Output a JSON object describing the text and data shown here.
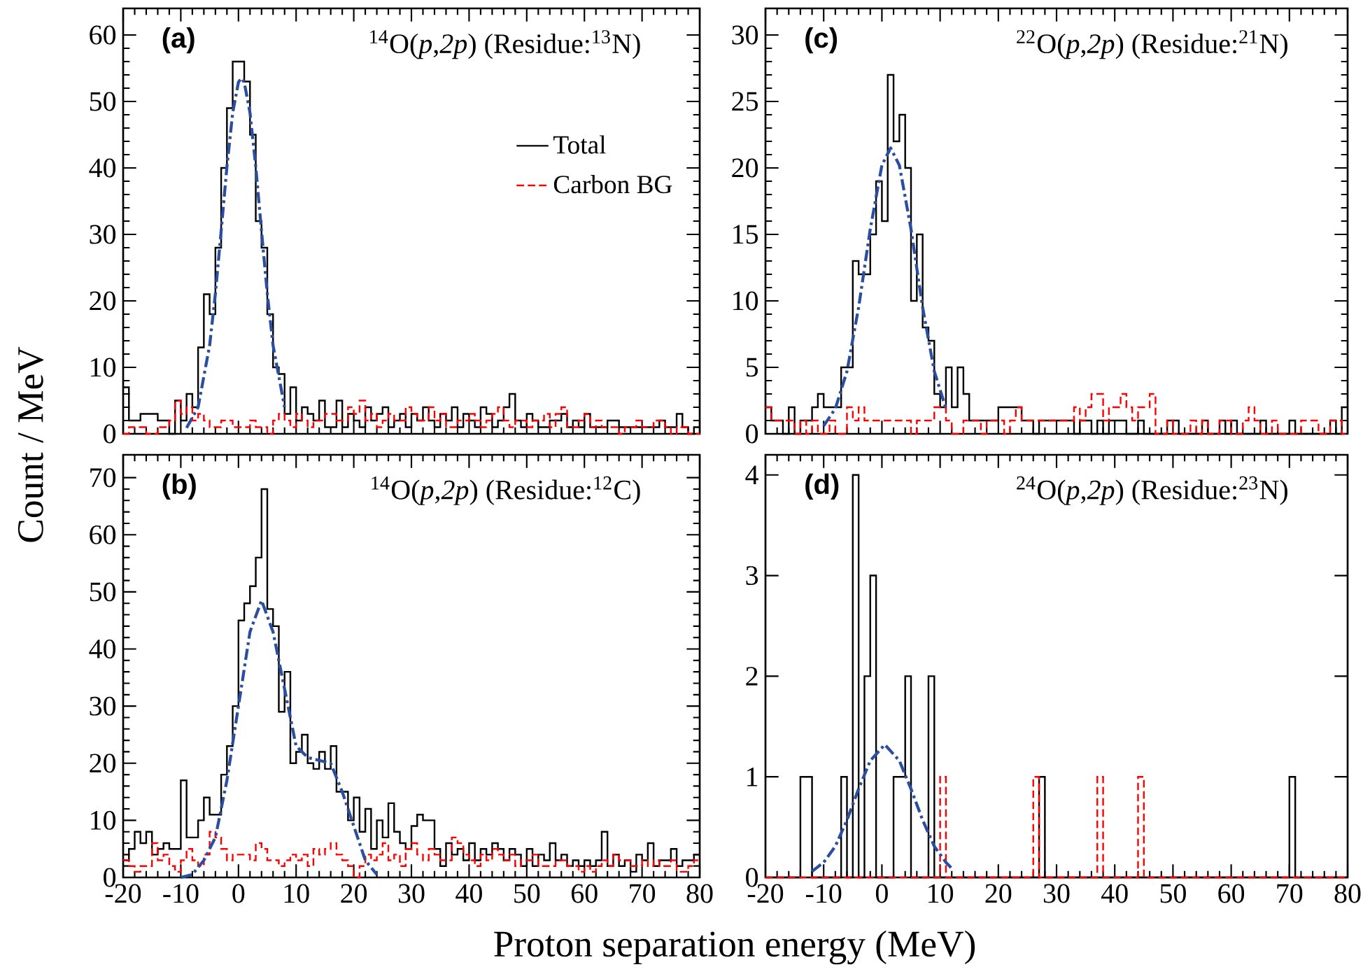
{
  "chart_data": [
    {
      "type": "histogram",
      "title": "(a)",
      "subtitle": "$^{14}$O(*p*,*2p*) (Residue:$^{13}$N)",
      "ylabel": "Count / MeV",
      "legend": "top right",
      "tick_labels": "y",
      "bins": [
        -20,
        -19,
        -18,
        -17,
        -16,
        -15,
        -14,
        -13,
        -12,
        -11,
        -10,
        -9,
        -8,
        -7,
        -6,
        -5,
        -4,
        -3,
        -2,
        -1,
        0,
        1,
        2,
        3,
        4,
        5,
        6,
        7,
        8,
        9,
        10,
        11,
        12,
        13,
        14,
        15,
        16,
        17,
        18,
        19,
        20,
        21,
        22,
        23,
        24,
        25,
        26,
        27,
        28,
        29,
        30,
        31,
        32,
        33,
        34,
        35,
        36,
        37,
        38,
        39,
        40,
        41,
        42,
        43,
        44,
        45,
        46,
        47,
        48,
        49,
        50,
        51,
        52,
        53,
        54,
        55,
        56,
        57,
        58,
        59,
        60,
        61,
        62,
        63,
        64,
        65,
        66,
        67,
        68,
        69,
        70,
        71,
        72,
        73,
        74,
        75,
        76,
        77,
        78,
        79,
        80
      ],
      "xlim": [
        -20,
        80
      ],
      "xticks": [
        -20,
        -10,
        0,
        10,
        20,
        30,
        40,
        50,
        60,
        70,
        80
      ],
      "ylim": [
        0,
        64
      ],
      "yticks": [
        0,
        10,
        20,
        30,
        40,
        50,
        60
      ],
      "series": [
        {
          "name": "Total",
          "color": "#000000",
          "line_style": "solid",
          "values": [
            7,
            2,
            2,
            3,
            3,
            3,
            2,
            2,
            0,
            5,
            2,
            6,
            4,
            13,
            21,
            18,
            28,
            40,
            49,
            56,
            56,
            53,
            45,
            32,
            28,
            18,
            10,
            9,
            3,
            7,
            2,
            4,
            3,
            2,
            5,
            1,
            1,
            5,
            1,
            3,
            2,
            1,
            4,
            2,
            3,
            4,
            1,
            2,
            3,
            1,
            3,
            2,
            4,
            2,
            1,
            3,
            2,
            4,
            1,
            3,
            2,
            1,
            4,
            3,
            1,
            2,
            4,
            6,
            2,
            1,
            3,
            2,
            1,
            1,
            2,
            2,
            3,
            1,
            2,
            1,
            3,
            1,
            1,
            1,
            2,
            2,
            1,
            1,
            1,
            1,
            1,
            1,
            1,
            2,
            1,
            1,
            3,
            1,
            0,
            1
          ]
        },
        {
          "name": "Carbon BG",
          "color": "#ff0000",
          "line_style": "dashed",
          "values": [
            0,
            1,
            1,
            1,
            0,
            0,
            1,
            1,
            2,
            5,
            3,
            4,
            2,
            3,
            2,
            1,
            1,
            2,
            2,
            1,
            1,
            1,
            2,
            1,
            1,
            0,
            2,
            3,
            2,
            1,
            3,
            2,
            1,
            2,
            2,
            3,
            3,
            2,
            2,
            4,
            3,
            5,
            2,
            3,
            1,
            2,
            3,
            2,
            2,
            4,
            3,
            2,
            2,
            4,
            2,
            3,
            1,
            1,
            2,
            2,
            3,
            2,
            1,
            2,
            3,
            4,
            2,
            1,
            2,
            2,
            1,
            2,
            2,
            3,
            1,
            3,
            4,
            1,
            1,
            2,
            3,
            1,
            2,
            1,
            1,
            1,
            0,
            1,
            1,
            2,
            1,
            1,
            2,
            2,
            1,
            0,
            1,
            1,
            0,
            0
          ]
        },
        {
          "type": "line",
          "color": "#2a4ea0",
          "line_style": "dashdot",
          "x": [
            -9,
            -7,
            -5,
            -4,
            -3,
            -2,
            -1,
            0,
            0.5,
            1,
            2,
            3,
            4,
            5,
            6,
            8
          ],
          "values": [
            0.9,
            4.0,
            13.3,
            21.1,
            30.5,
            40.2,
            48.3,
            52.9,
            53.5,
            52.9,
            48.3,
            40.2,
            30.5,
            21.1,
            13.3,
            4.0
          ]
        }
      ]
    },
    {
      "type": "histogram",
      "title": "(c)",
      "subtitle": "$^{22}$O(*p*,*2p*) (Residue:$^{21}$N)",
      "tick_labels": "y",
      "bins": [
        -20,
        -19,
        -18,
        -17,
        -16,
        -15,
        -14,
        -13,
        -12,
        -11,
        -10,
        -9,
        -8,
        -7,
        -6,
        -5,
        -4,
        -3,
        -2,
        -1,
        0,
        1,
        2,
        3,
        4,
        5,
        6,
        7,
        8,
        9,
        10,
        11,
        12,
        13,
        14,
        15,
        16,
        17,
        18,
        19,
        20,
        21,
        22,
        23,
        24,
        25,
        26,
        27,
        28,
        29,
        30,
        31,
        32,
        33,
        34,
        35,
        36,
        37,
        38,
        39,
        40,
        41,
        42,
        43,
        44,
        45,
        46,
        47,
        48,
        49,
        50,
        51,
        52,
        53,
        54,
        55,
        56,
        57,
        58,
        59,
        60,
        61,
        62,
        63,
        64,
        65,
        66,
        67,
        68,
        69,
        70,
        71,
        72,
        73,
        74,
        75,
        76,
        77,
        78,
        79,
        80
      ],
      "xlim": [
        -20,
        80
      ],
      "xticks": [
        -20,
        -10,
        0,
        10,
        20,
        30,
        40,
        50,
        60,
        70,
        80
      ],
      "ylim": [
        0,
        32
      ],
      "yticks": [
        0,
        5,
        10,
        15,
        20,
        25,
        30
      ],
      "series": [
        {
          "color": "#000000",
          "line_style": "solid",
          "values": [
            2,
            1,
            1,
            0,
            2,
            0,
            1,
            1,
            2,
            3,
            2,
            2,
            2,
            5,
            5,
            13,
            12,
            12,
            15,
            19,
            16,
            27,
            22,
            24,
            20,
            10,
            15,
            8,
            7,
            3,
            2,
            5,
            2,
            5,
            3,
            1,
            1,
            1,
            1,
            1,
            2,
            2,
            2,
            2,
            1,
            1,
            0,
            1,
            1,
            1,
            1,
            1,
            1,
            0,
            1,
            1,
            0,
            1,
            0,
            1,
            1,
            1,
            0,
            0,
            1,
            0,
            0,
            0,
            0,
            1,
            1,
            0,
            0,
            0,
            0,
            1,
            0,
            0,
            1,
            0,
            1,
            0,
            0,
            0,
            0,
            1,
            0,
            0,
            0,
            0,
            1,
            0,
            0,
            0,
            0,
            0,
            0,
            1,
            0,
            2
          ]
        },
        {
          "color": "#ff0000",
          "line_style": "dashed",
          "values": [
            2,
            1,
            1,
            1,
            1,
            0,
            1,
            0,
            1,
            0,
            0,
            1,
            0,
            0,
            2,
            1,
            2,
            1,
            1,
            1,
            1,
            1,
            1,
            1,
            1,
            0,
            1,
            1,
            1,
            2,
            2,
            1,
            0,
            0,
            1,
            1,
            1,
            0,
            1,
            1,
            1,
            0,
            1,
            2,
            1,
            1,
            1,
            1,
            1,
            1,
            1,
            1,
            1,
            2,
            1,
            2,
            3,
            3,
            1,
            2,
            2,
            3,
            2,
            1,
            2,
            2,
            3,
            0,
            0,
            1,
            0,
            0,
            0,
            1,
            0,
            1,
            0,
            0,
            1,
            1,
            0,
            0,
            1,
            2,
            1,
            0,
            0,
            1,
            0,
            0,
            0,
            0,
            1,
            1,
            1,
            0,
            0,
            1,
            1,
            0
          ]
        },
        {
          "type": "line",
          "color": "#2a4ea0",
          "line_style": "dashdot",
          "x": [
            -10,
            -8,
            -6,
            -4,
            -2,
            0,
            1.5,
            3,
            5,
            7,
            9,
            11
          ],
          "values": [
            0.6,
            1.9,
            4.7,
            9.5,
            15.4,
            20.2,
            21.5,
            20.2,
            15.4,
            9.5,
            4.7,
            1.9
          ]
        }
      ]
    },
    {
      "type": "histogram",
      "title": "(b)",
      "subtitle": "$^{14}$O(*p*,*2p*) (Residue:$^{12}$C)",
      "xlabel": "Proton separation energy (MeV)",
      "bins": [
        -20,
        -19,
        -18,
        -17,
        -16,
        -15,
        -14,
        -13,
        -12,
        -11,
        -10,
        -9,
        -8,
        -7,
        -6,
        -5,
        -4,
        -3,
        -2,
        -1,
        0,
        1,
        2,
        3,
        4,
        5,
        6,
        7,
        8,
        9,
        10,
        11,
        12,
        13,
        14,
        15,
        16,
        17,
        18,
        19,
        20,
        21,
        22,
        23,
        24,
        25,
        26,
        27,
        28,
        29,
        30,
        31,
        32,
        33,
        34,
        35,
        36,
        37,
        38,
        39,
        40,
        41,
        42,
        43,
        44,
        45,
        46,
        47,
        48,
        49,
        50,
        51,
        52,
        53,
        54,
        55,
        56,
        57,
        58,
        59,
        60,
        61,
        62,
        63,
        64,
        65,
        66,
        67,
        68,
        69,
        70,
        71,
        72,
        73,
        74,
        75,
        76,
        77,
        78,
        79,
        80
      ],
      "xlim": [
        -20,
        80
      ],
      "xticks": [
        -20,
        -10,
        0,
        10,
        20,
        30,
        40,
        50,
        60,
        70,
        80
      ],
      "ylim": [
        0,
        74
      ],
      "yticks": [
        0,
        10,
        20,
        30,
        40,
        50,
        60,
        70
      ],
      "series": [
        {
          "color": "#000000",
          "line_style": "solid",
          "values": [
            3,
            5,
            8,
            6,
            8,
            4,
            5,
            6,
            5,
            5,
            17,
            7,
            7,
            10,
            14,
            11,
            11,
            18,
            23,
            30,
            45,
            48,
            51,
            56,
            68,
            47,
            44,
            29,
            36,
            20,
            22,
            25,
            20,
            19,
            22,
            19,
            23,
            15,
            15,
            10,
            14,
            8,
            12,
            5,
            10,
            7,
            13,
            8,
            6,
            5,
            9,
            11,
            10,
            10,
            5,
            2,
            6,
            4,
            5,
            3,
            6,
            3,
            5,
            4,
            6,
            5,
            3,
            5,
            4,
            2,
            5,
            2,
            4,
            3,
            6,
            3,
            4,
            2,
            3,
            2,
            3,
            2,
            3,
            8,
            2,
            4,
            2,
            3,
            1,
            4,
            3,
            6,
            2,
            3,
            3,
            5,
            2,
            3,
            3,
            4
          ]
        },
        {
          "color": "#ff0000",
          "line_style": "dashed",
          "values": [
            3,
            2,
            1,
            2,
            2,
            6,
            3,
            4,
            2,
            1,
            3,
            5,
            3,
            2,
            4,
            8,
            7,
            5,
            3,
            4,
            4,
            4,
            3,
            6,
            5,
            3,
            3,
            2,
            3,
            4,
            3,
            4,
            2,
            5,
            4,
            5,
            6,
            4,
            3,
            2,
            0,
            2,
            4,
            3,
            4,
            6,
            3,
            4,
            2,
            5,
            6,
            4,
            3,
            5,
            4,
            3,
            3,
            7,
            6,
            4,
            3,
            2,
            4,
            3,
            5,
            4,
            3,
            4,
            2,
            3,
            3,
            4,
            2,
            2,
            2,
            3,
            3,
            2,
            2,
            1,
            2,
            1,
            2,
            3,
            2,
            4,
            3,
            3,
            2,
            2,
            3,
            2,
            3,
            2,
            2,
            3,
            1,
            1,
            2,
            3
          ]
        },
        {
          "type": "line",
          "color": "#2a4ea0",
          "line_style": "dashdot",
          "x": [
            -10,
            -8,
            -6,
            -4,
            -2,
            0,
            2,
            4,
            6,
            8,
            10,
            12,
            14,
            16,
            18,
            20,
            22,
            24
          ],
          "values": [
            0,
            0.5,
            3,
            7,
            17,
            30,
            43,
            48.5,
            43,
            33,
            23,
            21,
            20.5,
            20,
            15,
            9,
            3,
            0.5
          ]
        }
      ]
    },
    {
      "type": "histogram",
      "title": "(d)",
      "subtitle": "$^{24}$O(*p*,*2p*) (Residue:$^{23}$N)",
      "bins": [
        -20,
        -19,
        -18,
        -17,
        -16,
        -15,
        -14,
        -13,
        -12,
        -11,
        -10,
        -9,
        -8,
        -7,
        -6,
        -5,
        -4,
        -3,
        -2,
        -1,
        0,
        1,
        2,
        3,
        4,
        5,
        6,
        7,
        8,
        9,
        10,
        11,
        12,
        13,
        14,
        15,
        16,
        17,
        18,
        19,
        20,
        21,
        22,
        23,
        24,
        25,
        26,
        27,
        28,
        29,
        30,
        31,
        32,
        33,
        34,
        35,
        36,
        37,
        38,
        39,
        40,
        41,
        42,
        43,
        44,
        45,
        46,
        47,
        48,
        49,
        50,
        51,
        52,
        53,
        54,
        55,
        56,
        57,
        58,
        59,
        60,
        61,
        62,
        63,
        64,
        65,
        66,
        67,
        68,
        69,
        70,
        71,
        72,
        73,
        74,
        75,
        76,
        77,
        78,
        79,
        80
      ],
      "xlim": [
        -20,
        80
      ],
      "xticks": [
        -20,
        -10,
        0,
        10,
        20,
        30,
        40,
        50,
        60,
        70,
        80
      ],
      "ylim": [
        0,
        4.2
      ],
      "yticks": [
        0,
        1,
        2,
        3,
        4
      ],
      "series": [
        {
          "color": "#000000",
          "line_style": "solid",
          "values": [
            0,
            0,
            0,
            0,
            0,
            0,
            1,
            1,
            0,
            0,
            0,
            0,
            0,
            1,
            0,
            4,
            0,
            2,
            3,
            0,
            0,
            0,
            1,
            1,
            2,
            0,
            0,
            0,
            2,
            0,
            0,
            0,
            0,
            0,
            0,
            0,
            0,
            0,
            0,
            0,
            0,
            0,
            0,
            0,
            0,
            0,
            0,
            1,
            0,
            0,
            0,
            0,
            0,
            0,
            0,
            0,
            0,
            0,
            0,
            0,
            0,
            0,
            0,
            0,
            0,
            0,
            0,
            0,
            0,
            0,
            0,
            0,
            0,
            0,
            0,
            0,
            0,
            0,
            0,
            0,
            0,
            0,
            0,
            0,
            0,
            0,
            0,
            0,
            0,
            0,
            1,
            0,
            0,
            0,
            0,
            0,
            0,
            0,
            0,
            0
          ]
        },
        {
          "color": "#ff0000",
          "line_style": "dashed",
          "values": [
            0,
            0,
            0,
            0,
            0,
            0,
            0,
            0,
            0,
            0,
            0,
            0,
            0,
            0,
            0,
            0,
            0,
            0,
            0,
            0,
            0,
            0,
            0,
            0,
            0,
            0,
            0,
            0,
            0,
            0,
            1,
            0,
            0,
            0,
            0,
            0,
            0,
            0,
            0,
            0,
            0,
            0,
            0,
            0,
            0,
            0,
            1,
            0,
            0,
            0,
            0,
            0,
            0,
            0,
            0,
            0,
            0,
            1,
            0,
            0,
            0,
            0,
            0,
            0,
            1,
            0,
            0,
            0,
            0,
            0,
            0,
            0,
            0,
            0,
            0,
            0,
            0,
            0,
            0,
            0,
            0,
            0,
            0,
            0,
            0,
            0,
            0,
            0,
            0,
            0,
            0,
            0,
            0,
            0,
            0,
            0,
            0,
            0,
            0,
            0
          ]
        },
        {
          "type": "line",
          "color": "#2a4ea0",
          "line_style": "dashdot",
          "x": [
            -12,
            -10,
            -8,
            -6,
            -4,
            -2,
            0.5,
            3,
            5,
            7,
            9,
            11,
            12
          ],
          "values": [
            0.06,
            0.15,
            0.31,
            0.57,
            0.88,
            1.16,
            1.32,
            1.16,
            0.88,
            0.57,
            0.31,
            0.15,
            0.09
          ]
        }
      ]
    }
  ]
}
